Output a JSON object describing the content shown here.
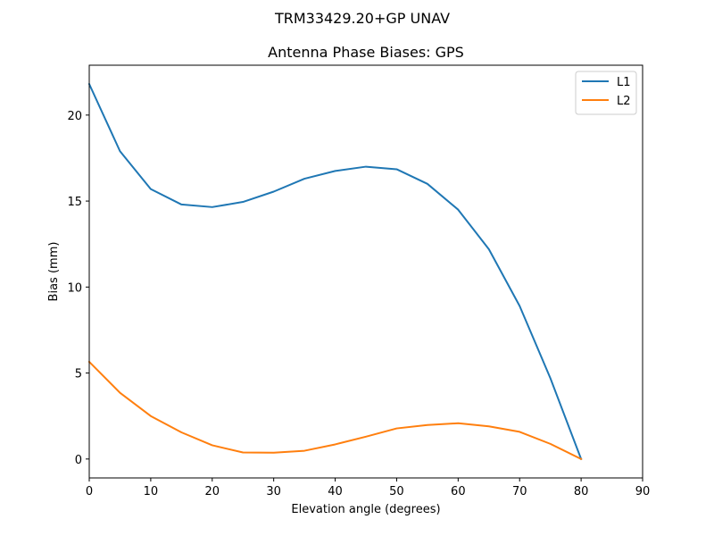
{
  "figure": {
    "suptitle": "TRM33429.20+GP  UNAV"
  },
  "chart_data": {
    "type": "line",
    "title": "Antenna Phase Biases: GPS",
    "xlabel": "Elevation angle (degrees)",
    "ylabel": "Bias (mm)",
    "xlim": [
      0,
      90
    ],
    "ylim": [
      -1.1,
      22.9
    ],
    "xticks": [
      0,
      10,
      20,
      30,
      40,
      50,
      60,
      70,
      80,
      90
    ],
    "yticks": [
      0,
      5,
      10,
      15,
      20
    ],
    "grid": false,
    "legend_position": "top-right",
    "x": [
      0,
      5,
      10,
      15,
      20,
      25,
      30,
      35,
      40,
      45,
      50,
      55,
      60,
      65,
      70,
      75,
      80
    ],
    "series": [
      {
        "name": "L1",
        "color": "#1f77b4",
        "values": [
          21.8,
          17.9,
          15.7,
          14.8,
          14.65,
          14.95,
          15.55,
          16.3,
          16.75,
          17.0,
          16.85,
          16.0,
          14.5,
          12.2,
          8.9,
          4.7,
          0.0
        ]
      },
      {
        "name": "L2",
        "color": "#ff7f0e",
        "values": [
          5.65,
          3.85,
          2.5,
          1.55,
          0.8,
          0.38,
          0.37,
          0.48,
          0.85,
          1.3,
          1.78,
          1.98,
          2.08,
          1.9,
          1.58,
          0.88,
          0.0
        ]
      }
    ]
  }
}
